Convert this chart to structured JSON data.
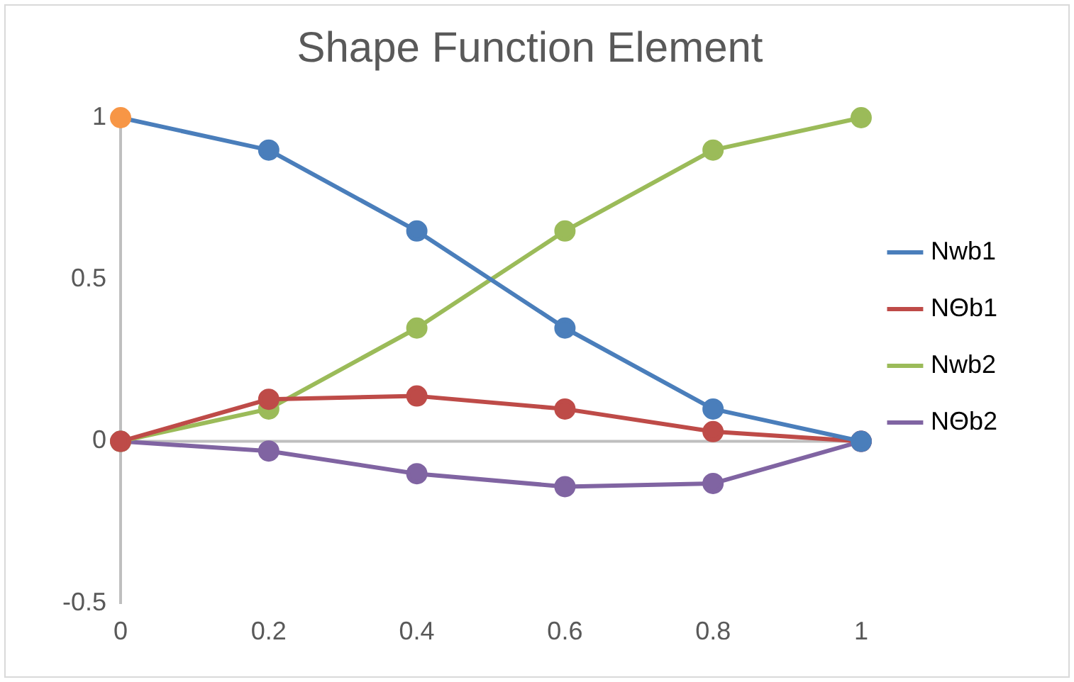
{
  "chart_data": {
    "type": "line",
    "title": "Shape Function Element",
    "x": [
      0,
      0.2,
      0.4,
      0.6,
      0.8,
      1
    ],
    "series": [
      {
        "name": "Nwb1",
        "color": "#4a7ebb",
        "colors": [
          "#f79646",
          "#4a7ebb",
          "#4a7ebb",
          "#4a7ebb",
          "#4a7ebb",
          "#4a7ebb"
        ],
        "values": [
          1,
          0.9,
          0.65,
          0.35,
          0.1,
          0
        ]
      },
      {
        "name": "NΘb1",
        "color": "#be4b48",
        "values": [
          0,
          0.13,
          0.14,
          0.1,
          0.03,
          0
        ]
      },
      {
        "name": "Nwb2",
        "color": "#9bbb59",
        "values": [
          0,
          0.1,
          0.35,
          0.65,
          0.9,
          1
        ]
      },
      {
        "name": "NΘb2",
        "color": "#8064a2",
        "values": [
          0,
          -0.03,
          -0.1,
          -0.14,
          -0.13,
          0
        ]
      }
    ],
    "xlim": [
      0,
      1
    ],
    "xticks": [
      0,
      0.2,
      0.4,
      0.6,
      0.8,
      1
    ],
    "ylim": [
      -0.5,
      1
    ],
    "yticks": [
      -0.5,
      0,
      0.5,
      1
    ],
    "ref_lines": [
      {
        "axis": "y",
        "value": 0,
        "color": "#bfbfbf"
      }
    ],
    "grid": false,
    "legend": "right",
    "marker": "circle",
    "line_style": "solid"
  }
}
